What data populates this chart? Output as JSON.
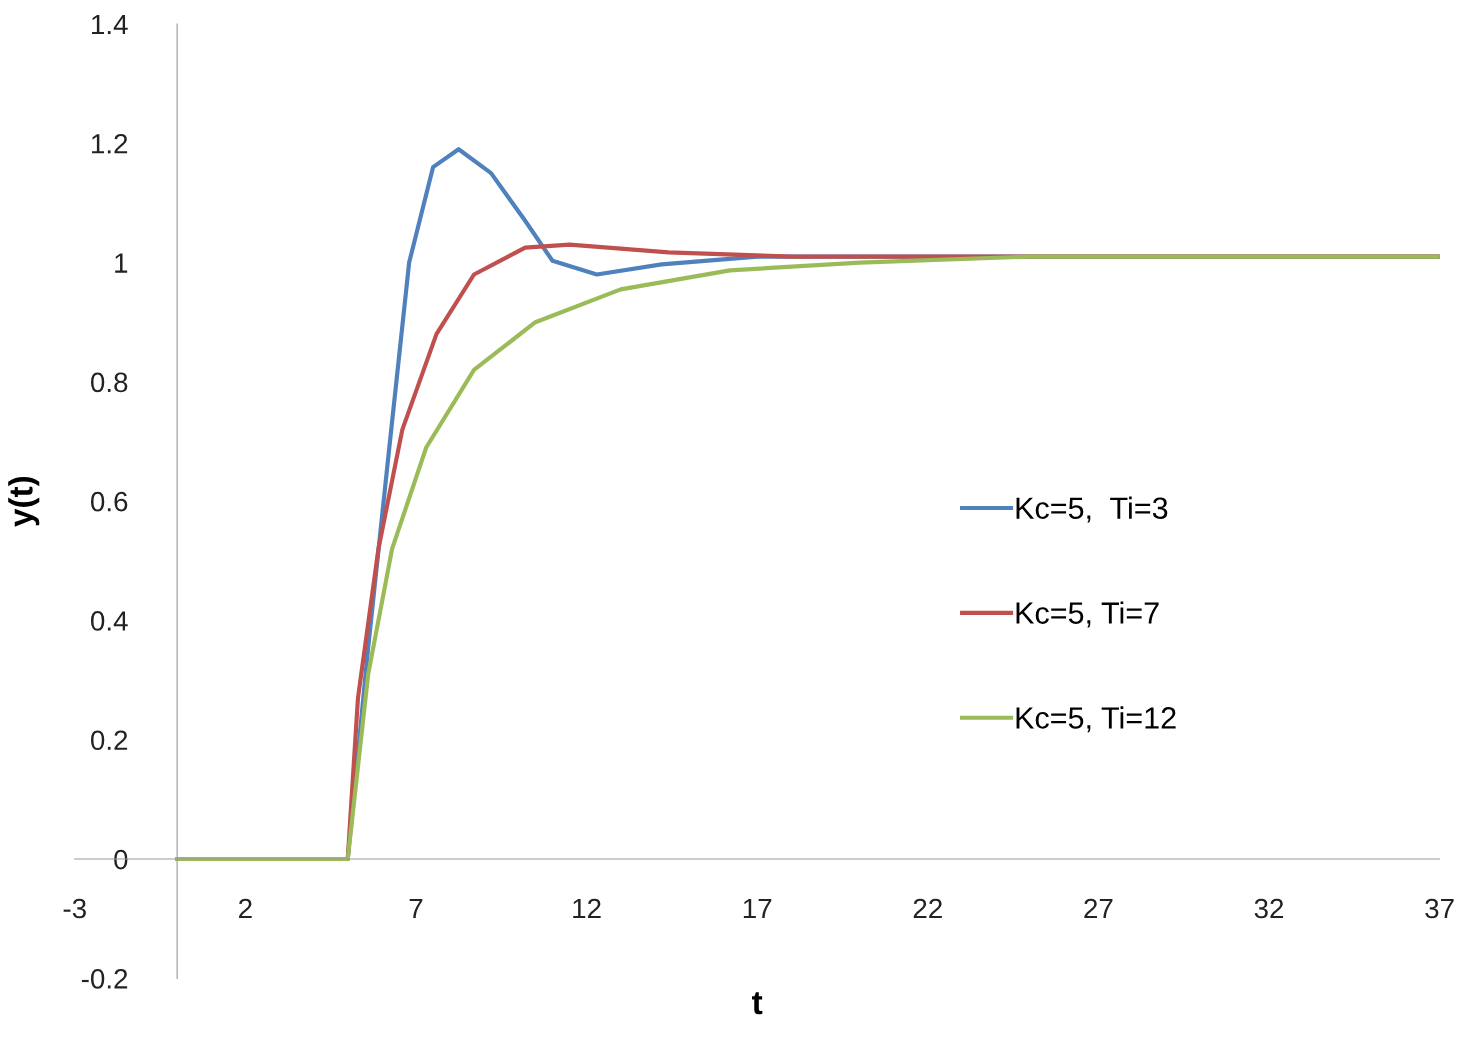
{
  "chart_data": {
    "type": "line",
    "xlabel": "t",
    "ylabel": "y(t)",
    "xlim": [
      -3,
      37
    ],
    "ylim": [
      -0.2,
      1.4
    ],
    "xticks": [
      -3,
      2,
      7,
      12,
      17,
      22,
      27,
      32,
      37
    ],
    "yticks": [
      -0.2,
      0,
      0.2,
      0.4,
      0.6,
      0.8,
      1,
      1.2,
      1.4
    ],
    "grid": false,
    "legend": "right",
    "marker": "none",
    "line_style": "solid",
    "series": [
      {
        "name": "Kc=5,  Ti=3",
        "color": "#4f81bd",
        "x": [
          0,
          5,
          5.6,
          6.2,
          6.8,
          7.5,
          8.25,
          9.2,
          10.2,
          11.0,
          12.3,
          14.2,
          17,
          37
        ],
        "values": [
          0,
          0,
          0.355,
          0.68,
          1.0,
          1.16,
          1.19,
          1.15,
          1.07,
          1.003,
          0.98,
          0.997,
          1.01,
          1.01
        ]
      },
      {
        "name": "Kc=5, Ti=7",
        "color": "#c0504d",
        "x": [
          0,
          5,
          5.3,
          5.9,
          6.6,
          7.6,
          8.7,
          10.2,
          11.5,
          14.4,
          18,
          22,
          37
        ],
        "values": [
          0,
          0,
          0.27,
          0.52,
          0.72,
          0.88,
          0.98,
          1.025,
          1.03,
          1.017,
          1.01,
          1.01,
          1.01
        ]
      },
      {
        "name": "Kc=5, Ti=12",
        "color": "#9bbb59",
        "x": [
          0,
          5,
          5.6,
          6.3,
          7.3,
          8.7,
          10.5,
          13.0,
          16.2,
          20,
          25,
          37
        ],
        "values": [
          0,
          0,
          0.31,
          0.52,
          0.69,
          0.82,
          0.9,
          0.955,
          0.987,
          1.0,
          1.01,
          1.01
        ]
      }
    ]
  }
}
